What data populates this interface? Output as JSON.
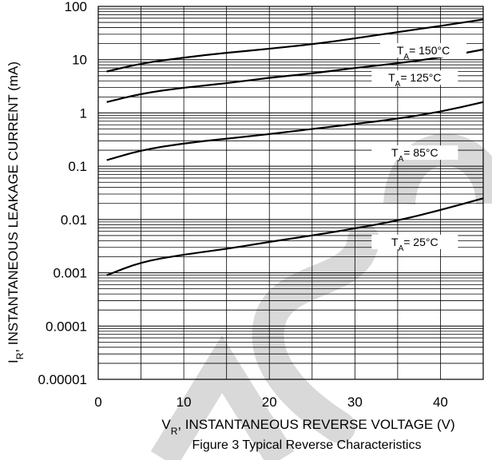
{
  "chart_data": {
    "type": "line",
    "caption": "Figure 3 Typical Reverse Characteristics",
    "xlabel": {
      "symbol": "V",
      "subscript": "R",
      "text": ", INSTANTANEOUS REVERSE VOLTAGE (V)"
    },
    "ylabel": {
      "symbol": "I",
      "subscript": "R",
      "text": ", INSTANTANEOUS LEAKAGE CURRENT (mA)"
    },
    "x_ticks": [
      "0",
      "10",
      "20",
      "30",
      "40"
    ],
    "y_ticks": [
      "0.00001",
      "0.0001",
      "0.001",
      "0.01",
      "0.1",
      "1",
      "10",
      "100"
    ],
    "xlim": [
      0,
      45
    ],
    "ylim": [
      1e-05,
      100
    ],
    "y_scale": "log",
    "grid": true,
    "series": [
      {
        "label": {
          "symbol": "T",
          "subscript": "A",
          "text": "= 150°C"
        },
        "points": [
          [
            1,
            6.0
          ],
          [
            5,
            8.5
          ],
          [
            10,
            11.0
          ],
          [
            15,
            13.5
          ],
          [
            20,
            16.0
          ],
          [
            25,
            19.5
          ],
          [
            30,
            25.0
          ],
          [
            35,
            33.0
          ],
          [
            40,
            43.0
          ],
          [
            45,
            57.0
          ]
        ]
      },
      {
        "label": {
          "symbol": "T",
          "subscript": "A",
          "text": "= 125°C"
        },
        "points": [
          [
            1,
            1.6
          ],
          [
            5,
            2.3
          ],
          [
            10,
            3.0
          ],
          [
            15,
            3.6
          ],
          [
            20,
            4.6
          ],
          [
            25,
            5.5
          ],
          [
            30,
            7.0
          ],
          [
            35,
            8.5
          ],
          [
            40,
            11.0
          ],
          [
            45,
            15.5
          ]
        ]
      },
      {
        "label": {
          "symbol": "T",
          "subscript": "A",
          "text": "= 85°C"
        },
        "points": [
          [
            1,
            0.13
          ],
          [
            5,
            0.2
          ],
          [
            10,
            0.27
          ],
          [
            15,
            0.33
          ],
          [
            20,
            0.4
          ],
          [
            25,
            0.5
          ],
          [
            30,
            0.62
          ],
          [
            35,
            0.78
          ],
          [
            40,
            1.05
          ],
          [
            45,
            1.6
          ]
        ]
      },
      {
        "label": {
          "symbol": "T",
          "subscript": "A",
          "text": "= 25°C"
        },
        "points": [
          [
            1,
            0.0009
          ],
          [
            5,
            0.0016
          ],
          [
            10,
            0.0022
          ],
          [
            15,
            0.0028
          ],
          [
            20,
            0.0038
          ],
          [
            25,
            0.005
          ],
          [
            30,
            0.0068
          ],
          [
            35,
            0.0095
          ],
          [
            40,
            0.015
          ],
          [
            45,
            0.025
          ]
        ]
      }
    ]
  },
  "colors": {
    "grid": "#000000",
    "curve": "#000000",
    "label_background": "#ffffff",
    "watermark": "#d9d9d9"
  }
}
